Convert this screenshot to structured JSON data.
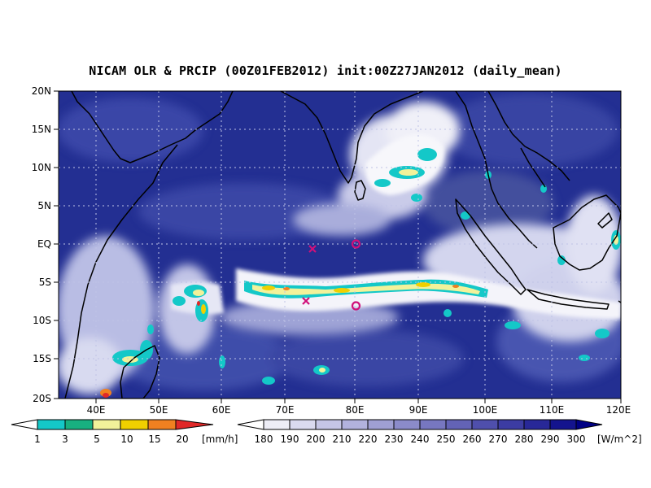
{
  "title": "NICAM OLR & PRCIP (00Z01FEB2012) init:00Z27JAN2012 (daily_mean)",
  "colors": {
    "ocean_deep": "#1c2a8a",
    "ocean_mid": "#3a4aa8",
    "cloud_light": "#c8cbe8",
    "cloud_white": "#f2f2f8",
    "coast": "#000000",
    "marker": "#d0107a"
  },
  "map": {
    "lat_labels": [
      "20N",
      "15N",
      "10N",
      "5N",
      "EQ",
      "5S",
      "10S",
      "15S",
      "20S"
    ],
    "lon_labels": [
      "40E",
      "50E",
      "60E",
      "70E",
      "80E",
      "90E",
      "100E",
      "110E",
      "120E"
    ],
    "markers": [
      {
        "type": "x",
        "label": "x",
        "lon": 73.2,
        "lat": -0.6
      },
      {
        "type": "o",
        "label": "o",
        "lon": 80.0,
        "lat": 0.0
      },
      {
        "type": "x",
        "label": "x",
        "lon": 72.5,
        "lat": -7.4
      },
      {
        "type": "o",
        "label": "o",
        "lon": 80.0,
        "lat": -8.0
      }
    ]
  },
  "precip_colorbar": {
    "labels": [
      "1",
      "3",
      "5",
      "10",
      "15",
      "20"
    ],
    "unit": "[mm/h]",
    "colors": [
      "#ffffff",
      "#14c8c8",
      "#18b080",
      "#f2f29a",
      "#f0d000",
      "#f08020",
      "#e02828"
    ]
  },
  "olr_colorbar": {
    "labels": [
      "180",
      "190",
      "200",
      "210",
      "220",
      "230",
      "240",
      "250",
      "260",
      "270",
      "280",
      "290",
      "300"
    ],
    "unit": "[W/m^2]",
    "colors": [
      "#ffffff",
      "#ededf6",
      "#dadaef",
      "#c6c6e6",
      "#b2b2dd",
      "#9f9fd3",
      "#8b8bca",
      "#7777c0",
      "#6363b6",
      "#4f4fac",
      "#3c3ca2",
      "#282898",
      "#14148e",
      "#000084"
    ]
  }
}
